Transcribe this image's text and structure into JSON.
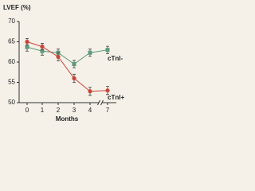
{
  "chart_data": {
    "type": "line",
    "y_label": "LVEF (%)",
    "x_label": "Months",
    "categories": [
      "0",
      "1",
      "2",
      "3",
      "4",
      "7"
    ],
    "ylim": [
      50,
      70
    ],
    "yticks": [
      50,
      55,
      60,
      65,
      70
    ],
    "axis_break": true,
    "series": [
      {
        "name": "cTnI-",
        "color": "#5f9a7c",
        "marker": "square",
        "values": [
          63.7,
          62.7,
          62.3,
          59.5,
          62.3,
          63
        ],
        "errors": [
          1,
          1,
          0.9,
          0.9,
          0.9,
          0.9
        ]
      },
      {
        "name": "cTnI+",
        "color": "#c8453c",
        "marker": "circle",
        "values": [
          65,
          63.8,
          61.3,
          56,
          52.8,
          53
        ],
        "errors": [
          0.8,
          0.8,
          1,
          1,
          1,
          1
        ]
      }
    ]
  }
}
